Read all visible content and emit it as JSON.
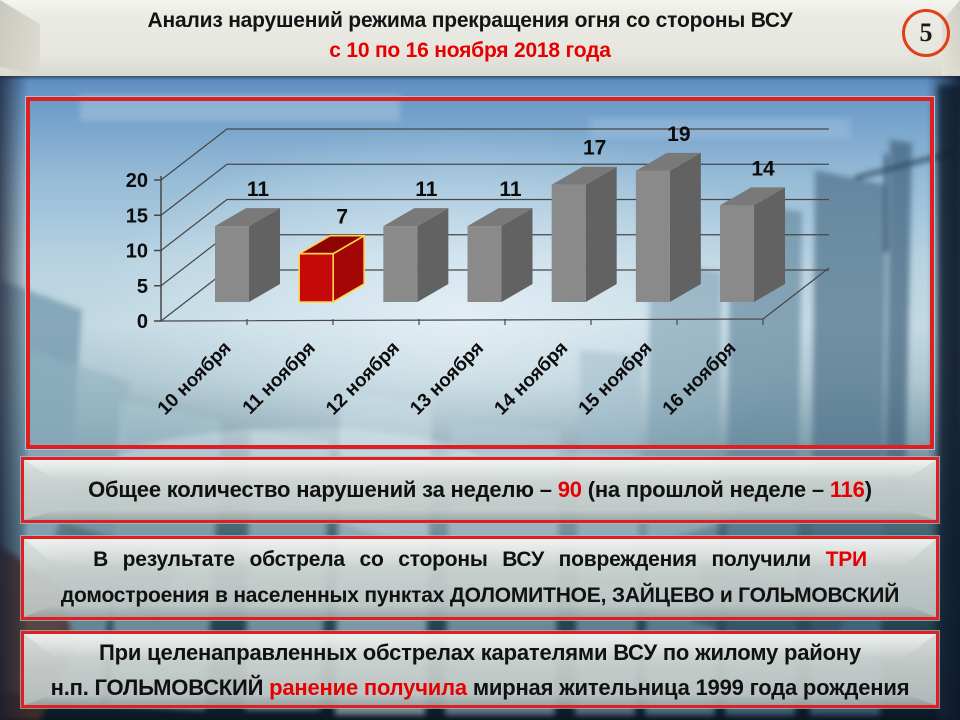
{
  "header": {
    "title_line1": "Анализ нарушений режима прекращения огня со стороны ВСУ",
    "title_line2": "с 10 по 16 ноября 2018 года",
    "page_number": "5"
  },
  "chart_data": {
    "type": "bar",
    "variant": "3d-column",
    "title": "",
    "xlabel": "",
    "ylabel": "",
    "categories": [
      "10 ноября",
      "11 ноября",
      "12 ноября",
      "13 ноября",
      "14 ноября",
      "15 ноября",
      "16 ноября"
    ],
    "values": [
      11,
      7,
      11,
      11,
      17,
      19,
      14
    ],
    "highlighted_index": 1,
    "y_ticks": [
      0,
      5,
      10,
      15,
      20
    ],
    "ylim": [
      0,
      20
    ],
    "grid": true,
    "legend": false,
    "colors": {
      "bar_front": "#8a8a8a",
      "bar_top": "#797979",
      "bar_side": "#626262",
      "highlight_front": "#c50808",
      "highlight_top": "#8e0404",
      "highlight_side": "#a40606",
      "highlight_outline": "#ffd54a",
      "grid_line": "#474747",
      "label": "#0b0b0b"
    }
  },
  "summary_box": {
    "text_before": "Общее количество нарушений за неделю –",
    "current_count": "90",
    "text_middle": "(на прошлой неделе –",
    "previous_count": "116",
    "text_after": ")"
  },
  "damage_box": {
    "line1": "В результате обстрела со стороны ВСУ повреждения получили",
    "line1_highlight": "ТРИ",
    "line2": "домостроения в населенных пунктах ДОЛОМИТНОЕ, ЗАЙЦЕВО и ГОЛЬМОВСКИЙ"
  },
  "casualty_box": {
    "line1": "При целенаправленных обстрелах карателями ВСУ по жилому району",
    "line2_before": "н.п. ГОЛЬМОВСКИЙ",
    "line2_highlight": "ранение получила",
    "line2_after": "мирная жительница 1999 года рождения"
  },
  "accent_colors": {
    "red_text": "#e60000",
    "border_red": "#e02020",
    "subtitle_red": "#d40000",
    "circle_red": "#e04018"
  }
}
